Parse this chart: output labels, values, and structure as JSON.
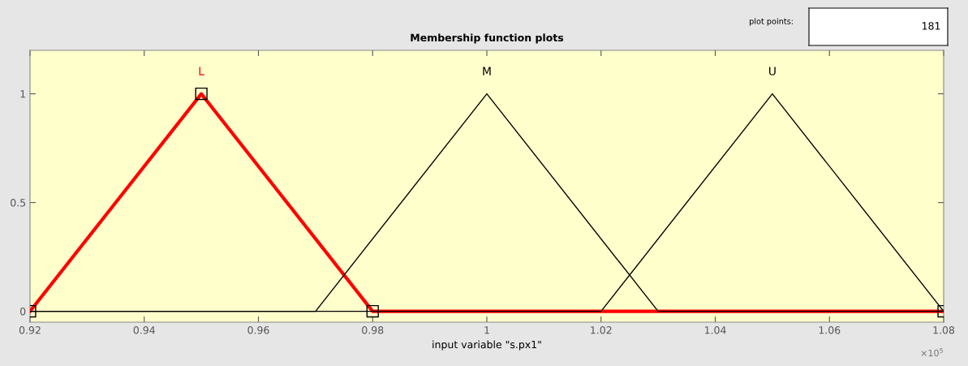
{
  "chart_data": {
    "type": "line",
    "title": "Membership function plots",
    "xlabel": "input variable \"s.px1\"",
    "xlim": [
      0.92,
      1.08
    ],
    "xticks": [
      0.92,
      0.94,
      0.96,
      0.98,
      1,
      1.02,
      1.04,
      1.06,
      1.08
    ],
    "ylim": [
      -0.05,
      1.2
    ],
    "yticks": [
      0,
      0.5,
      1
    ],
    "grid": false,
    "legend": false,
    "line_style": "solid",
    "annotations": [
      "×10$^{5}$",
      "plot points:",
      "181"
    ],
    "series": [
      {
        "name": "L",
        "color": "#ff0000",
        "marker": "square",
        "x": [
          0.92,
          0.95,
          0.98,
          1.08
        ],
        "values": [
          0,
          1,
          0,
          0
        ]
      },
      {
        "name": "M",
        "color": "#000000",
        "marker": "none",
        "x": [
          0.92,
          0.97,
          1.0,
          1.03,
          1.08
        ],
        "values": [
          0,
          0,
          1,
          0,
          0
        ]
      },
      {
        "name": "U",
        "color": "#000000",
        "marker": "none",
        "x": [
          0.92,
          1.02,
          1.05,
          1.08
        ],
        "values": [
          0,
          0,
          1,
          0
        ]
      }
    ]
  }
}
